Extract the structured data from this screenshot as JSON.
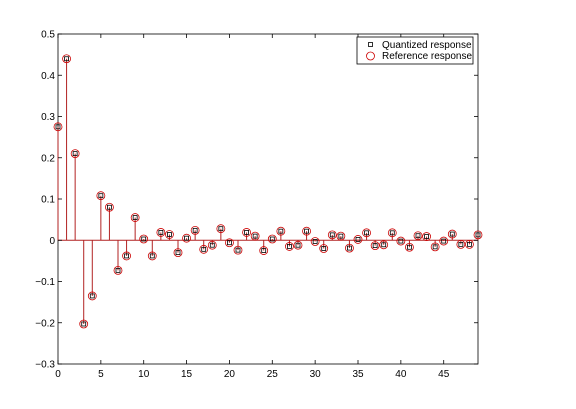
{
  "chart_data": {
    "type": "stem",
    "title": "",
    "xlabel": "",
    "ylabel": "",
    "xlim": [
      0,
      49
    ],
    "ylim": [
      -0.3,
      0.5
    ],
    "xticks": [
      0,
      5,
      10,
      15,
      20,
      25,
      30,
      35,
      40,
      45
    ],
    "yticks": [
      -0.3,
      -0.2,
      -0.1,
      0,
      0.1,
      0.2,
      0.3,
      0.4,
      0.5
    ],
    "xtick_labels": [
      "0",
      "5",
      "10",
      "15",
      "20",
      "25",
      "30",
      "35",
      "40",
      "45"
    ],
    "ytick_labels": [
      "−0.3",
      "−0.2",
      "−0.1",
      "0",
      "0.1",
      "0.2",
      "0.3",
      "0.4",
      "0.5"
    ],
    "grid": false,
    "legend_position": "top-right",
    "stem_color": "#b22222",
    "series": [
      {
        "name": "Quantized response",
        "marker": "square",
        "color": "#000000",
        "x": [
          0,
          1,
          2,
          3,
          4,
          5,
          6,
          7,
          8,
          9,
          10,
          11,
          12,
          13,
          14,
          15,
          16,
          17,
          18,
          19,
          20,
          21,
          22,
          23,
          24,
          25,
          26,
          27,
          28,
          29,
          30,
          31,
          32,
          33,
          34,
          35,
          36,
          37,
          38,
          39,
          40,
          41,
          42,
          43,
          44,
          45,
          46,
          47,
          48,
          49
        ],
        "values": [
          0.275,
          0.44,
          0.21,
          -0.203,
          -0.135,
          0.108,
          0.08,
          -0.073,
          -0.038,
          0.055,
          0.003,
          -0.038,
          0.019,
          0.014,
          -0.03,
          0.005,
          0.024,
          -0.022,
          -0.012,
          0.028,
          -0.006,
          -0.024,
          0.019,
          0.01,
          -0.025,
          0.003,
          0.022,
          -0.015,
          -0.012,
          0.022,
          -0.003,
          -0.02,
          0.013,
          0.01,
          -0.019,
          0.002,
          0.018,
          -0.013,
          -0.011,
          0.018,
          -0.002,
          -0.017,
          0.011,
          0.009,
          -0.016,
          -0.002,
          0.015,
          -0.01,
          -0.01,
          0.013
        ]
      },
      {
        "name": "Reference response",
        "marker": "circle",
        "color": "#cc0000",
        "x": [
          0,
          1,
          2,
          3,
          4,
          5,
          6,
          7,
          8,
          9,
          10,
          11,
          12,
          13,
          14,
          15,
          16,
          17,
          18,
          19,
          20,
          21,
          22,
          23,
          24,
          25,
          26,
          27,
          28,
          29,
          30,
          31,
          32,
          33,
          34,
          35,
          36,
          37,
          38,
          39,
          40,
          41,
          42,
          43,
          44,
          45,
          46,
          47,
          48,
          49
        ],
        "values": [
          0.275,
          0.44,
          0.21,
          -0.203,
          -0.135,
          0.108,
          0.08,
          -0.073,
          -0.038,
          0.055,
          0.003,
          -0.038,
          0.019,
          0.014,
          -0.03,
          0.005,
          0.024,
          -0.022,
          -0.012,
          0.028,
          -0.006,
          -0.024,
          0.019,
          0.01,
          -0.025,
          0.003,
          0.022,
          -0.015,
          -0.012,
          0.022,
          -0.003,
          -0.02,
          0.013,
          0.01,
          -0.019,
          0.002,
          0.018,
          -0.013,
          -0.011,
          0.018,
          -0.002,
          -0.017,
          0.011,
          0.009,
          -0.016,
          -0.002,
          0.015,
          -0.01,
          -0.01,
          0.013
        ]
      }
    ]
  }
}
